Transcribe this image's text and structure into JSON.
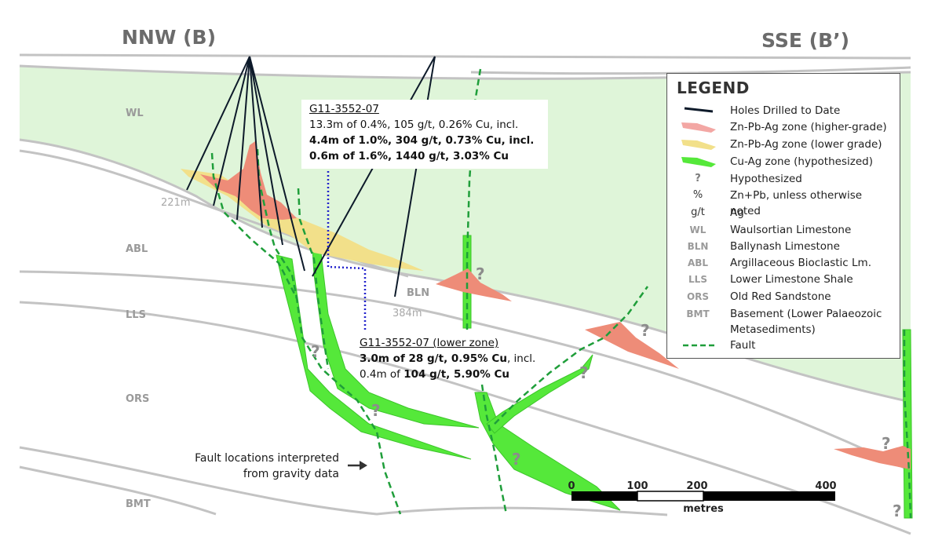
{
  "section": {
    "left_title": "NNW (B)",
    "right_title": "SSE (B’)"
  },
  "units": {
    "wl": "WL",
    "abl": "ABL",
    "lls": "LLS",
    "ors": "ORS",
    "bmt": "BMT",
    "bln": "BLN"
  },
  "depths": {
    "hole_a": "221m",
    "hole_b": "384m"
  },
  "question_mark": "?",
  "upper_intercept": {
    "hole_id": "G11-3552-07",
    "line1": "13.3m of 0.4%, 105 g/t, 0.26% Cu, incl.",
    "line2": "4.4m of 1.0%, 304 g/t, 0.73% Cu, incl.",
    "line3": "0.6m of 1.6%, 1440 g/t, 3.03% Cu"
  },
  "lower_intercept": {
    "hole_id": "G11-3552-07 (lower zone)",
    "line1_bold": "3.0m of 28 g/t, 0.95% Cu",
    "line1_rest": ", incl.",
    "line2_prefix": "0.4m of ",
    "line2_bold": "104 g/t, 5.90% Cu"
  },
  "fault_note": {
    "line1": "Fault locations interpreted",
    "line2": "from gravity data"
  },
  "scale_bar": {
    "ticks": [
      "0",
      "100",
      "200",
      "400"
    ],
    "unit": "metres"
  },
  "legend": {
    "title": "LEGEND",
    "items": [
      {
        "symbol": "line-black",
        "label": "Holes Drilled to Date"
      },
      {
        "symbol": "swatch-pink",
        "label": "Zn-Pb-Ag zone (higher-grade)"
      },
      {
        "symbol": "swatch-yellow",
        "label": "Zn-Pb-Ag zone (lower grade)"
      },
      {
        "symbol": "swatch-green",
        "label": "Cu-Ag zone (hypothesized)"
      },
      {
        "symbol": "?",
        "label": "Hypothesized"
      },
      {
        "symbol": "%",
        "label": "Zn+Pb, unless otherwise noted"
      },
      {
        "symbol": "g/t",
        "label": "Ag"
      },
      {
        "symbol": "WL",
        "label": "Waulsortian Limestone"
      },
      {
        "symbol": "BLN",
        "label": "Ballynash Limestone"
      },
      {
        "symbol": "ABL",
        "label": "Argillaceous Bioclastic Lm."
      },
      {
        "symbol": "LLS",
        "label": "Lower Limestone Shale"
      },
      {
        "symbol": "ORS",
        "label": "Old Red Sandstone"
      },
      {
        "symbol": "BMT",
        "label": "Basement (Lower Palaeozoic Metasediments)"
      },
      {
        "symbol": "line-green-dash",
        "label": "Fault"
      }
    ]
  },
  "colors": {
    "waulsortian_fill": "#dff5d9",
    "zn_pb_ag_high": "#ee8c78",
    "zn_pb_ag_low": "#f2e08a",
    "cu_ag": "#55e83a",
    "fault": "#1f9e3a",
    "hole": "#0d1a2a",
    "survey_line": "#2222cc"
  }
}
